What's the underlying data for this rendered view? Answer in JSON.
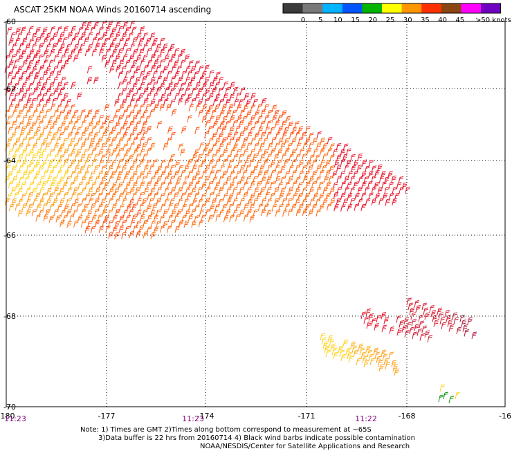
{
  "title": "ASCAT 25KM NOAA Winds 20160714 ascending",
  "color_scale": {
    "labels": [
      "0",
      "5",
      "10",
      "15",
      "20",
      "25",
      "30",
      "35",
      "40",
      "45",
      ">50 knots"
    ],
    "colors": [
      "#3a3a3a",
      "#787878",
      "#00b4ff",
      "#0055ff",
      "#00b400",
      "#ffff00",
      "#ff9600",
      "#ff3000",
      "#8b4513",
      "#ff00ff",
      "#7000c0"
    ]
  },
  "axes": {
    "lon_labels": [
      "-180",
      "-177",
      "-174",
      "-171",
      "-168",
      "-16"
    ],
    "lat_labels": [
      "-60",
      "-62",
      "-64",
      "-66",
      "-68",
      "-70"
    ]
  },
  "time_labels": [
    "11:23",
    "11:23",
    "11:22"
  ],
  "notes": {
    "line1": "Note: 1) Times are GMT 2)Times along bottom correspond to measurement at ~65S",
    "line2": "3)Data buffer is 22 hrs from 20160714 4) Black wind barbs indicate possible contamination",
    "line3": "NOAA/NESDIS/Center for Satellite Applications and Research"
  }
}
